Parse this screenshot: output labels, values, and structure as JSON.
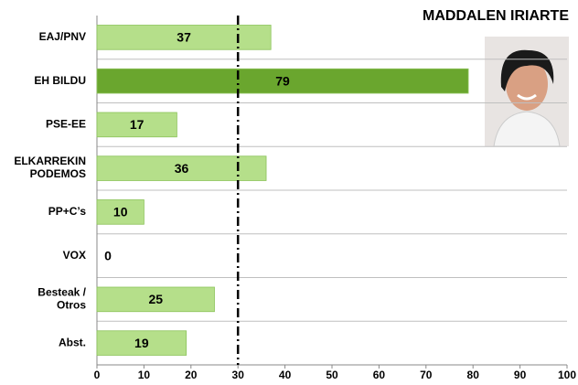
{
  "chart_data": {
    "type": "bar",
    "orientation": "horizontal",
    "title": "MADDALEN IRIARTE",
    "categories": [
      "EAJ/PNV",
      "EH BILDU",
      "PSE-EE",
      "ELKARREKIN\nPODEMOS",
      "PP+C’s",
      "VOX",
      "Besteak /\nOtros",
      "Abst."
    ],
    "values": [
      37,
      79,
      17,
      36,
      10,
      0,
      25,
      19
    ],
    "colors": [
      "#b5df8a",
      "#6aa62e",
      "#b5df8a",
      "#b5df8a",
      "#b5df8a",
      "#b5df8a",
      "#b5df8a",
      "#b5df8a"
    ],
    "label_colors": [
      "#000000",
      "#ffffff",
      "#000000",
      "#000000",
      "#000000",
      "#000000",
      "#000000",
      "#000000"
    ],
    "xlim": [
      0,
      100
    ],
    "xticks": [
      0,
      10,
      20,
      30,
      40,
      50,
      60,
      70,
      80,
      90,
      100
    ],
    "reference_line": 30
  }
}
